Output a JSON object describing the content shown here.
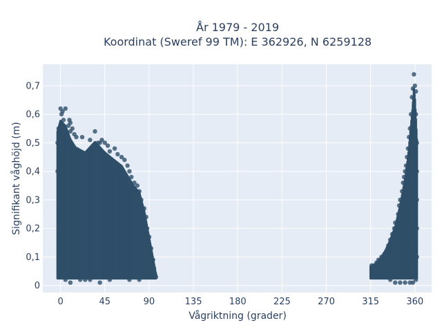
{
  "chart_data": {
    "type": "scatter",
    "title_lines": [
      "År 1979 - 2019",
      "Koordinat (Sweref 99 TM): E 362926, N 6259128"
    ],
    "xlabel": "Vågriktning (grader)",
    "ylabel": "Signifikant våghöjd (m)",
    "xlim": [
      -18,
      377
    ],
    "ylim": [
      -0.025,
      0.775
    ],
    "x_ticks": [
      0,
      45,
      90,
      135,
      180,
      225,
      270,
      315,
      360
    ],
    "x_tick_labels": [
      "0",
      "45",
      "90",
      "135",
      "180",
      "225",
      "270",
      "315",
      "360"
    ],
    "y_ticks": [
      0,
      0.1,
      0.2,
      0.3,
      0.4,
      0.5,
      0.6,
      0.7
    ],
    "y_tick_labels": [
      "0",
      "0,1",
      "0,2",
      "0,3",
      "0,4",
      "0,5",
      "0,6",
      "0,7"
    ],
    "grid": true,
    "colors": {
      "marker": "#2f4f69",
      "plot_background": "#e5ecf6",
      "grid": "#ffffff",
      "text": "#2a3f5f"
    },
    "series": [
      {
        "marker": "circle",
        "description_clusters": [
          {
            "x_range": [
              -3,
              97
            ],
            "y_min": 0.01,
            "upper_envelope": [
              [
                -3,
                0.58
              ],
              [
                0,
                0.62
              ],
              [
                5,
                0.6
              ],
              [
                10,
                0.55
              ],
              [
                15,
                0.52
              ],
              [
                25,
                0.5
              ],
              [
                35,
                0.54
              ],
              [
                45,
                0.5
              ],
              [
                55,
                0.47
              ],
              [
                62,
                0.45
              ],
              [
                70,
                0.4
              ],
              [
                75,
                0.37
              ],
              [
                80,
                0.35
              ],
              [
                85,
                0.28
              ],
              [
                90,
                0.18
              ],
              [
                95,
                0.08
              ],
              [
                97,
                0.04
              ]
            ]
          },
          {
            "x_range": [
              315,
              362
            ],
            "y_min": 0.01,
            "upper_envelope": [
              [
                315,
                0.07
              ],
              [
                320,
                0.08
              ],
              [
                325,
                0.1
              ],
              [
                330,
                0.13
              ],
              [
                335,
                0.17
              ],
              [
                340,
                0.22
              ],
              [
                345,
                0.3
              ],
              [
                350,
                0.4
              ],
              [
                353,
                0.48
              ],
              [
                356,
                0.6
              ],
              [
                358,
                0.68
              ],
              [
                359,
                0.74
              ],
              [
                360,
                0.7
              ],
              [
                362,
                0.55
              ]
            ]
          }
        ],
        "points": [
          [
            0,
            0.62
          ],
          [
            2,
            0.61
          ],
          [
            5,
            0.62
          ],
          [
            1,
            0.6
          ],
          [
            3,
            0.58
          ],
          [
            9,
            0.58
          ],
          [
            10,
            0.57
          ],
          [
            8,
            0.56
          ],
          [
            12,
            0.55
          ],
          [
            10,
            0.54
          ],
          [
            14,
            0.53
          ],
          [
            35,
            0.54
          ],
          [
            16,
            0.52
          ],
          [
            22,
            0.52
          ],
          [
            30,
            0.51
          ],
          [
            38,
            0.5
          ],
          [
            42,
            0.51
          ],
          [
            40,
            0.5
          ],
          [
            45,
            0.5
          ],
          [
            48,
            0.49
          ],
          [
            55,
            0.48
          ],
          [
            50,
            0.47
          ],
          [
            58,
            0.46
          ],
          [
            62,
            0.45
          ],
          [
            65,
            0.44
          ],
          [
            68,
            0.42
          ],
          [
            70,
            0.4
          ],
          [
            72,
            0.38
          ],
          [
            75,
            0.36
          ],
          [
            78,
            0.35
          ],
          [
            80,
            0.33
          ],
          [
            82,
            0.3
          ],
          [
            85,
            0.27
          ],
          [
            87,
            0.24
          ],
          [
            88,
            0.2
          ],
          [
            90,
            0.17
          ],
          [
            92,
            0.13
          ],
          [
            94,
            0.09
          ],
          [
            95,
            0.06
          ],
          [
            96,
            0.04
          ],
          [
            97,
            0.03
          ],
          [
            -2,
            0.55
          ],
          [
            -3,
            0.5
          ],
          [
            -3,
            0.4
          ],
          [
            -2,
            0.3
          ],
          [
            -2,
            0.2
          ],
          [
            -2,
            0.1
          ],
          [
            -1,
            0.05
          ],
          [
            5,
            0.02
          ],
          [
            10,
            0.01
          ],
          [
            20,
            0.02
          ],
          [
            30,
            0.02
          ],
          [
            40,
            0.01
          ],
          [
            50,
            0.02
          ],
          [
            60,
            0.03
          ],
          [
            70,
            0.02
          ],
          [
            80,
            0.02
          ],
          [
            90,
            0.03
          ],
          [
            15,
            0.03
          ],
          [
            25,
            0.02
          ],
          [
            359,
            0.74
          ],
          [
            360,
            0.7
          ],
          [
            358,
            0.69
          ],
          [
            361,
            0.68
          ],
          [
            357,
            0.66
          ],
          [
            359,
            0.64
          ],
          [
            356,
            0.6
          ],
          [
            360,
            0.58
          ],
          [
            355,
            0.55
          ],
          [
            354,
            0.52
          ],
          [
            353,
            0.48
          ],
          [
            352,
            0.45
          ],
          [
            351,
            0.42
          ],
          [
            350,
            0.4
          ],
          [
            349,
            0.38
          ],
          [
            348,
            0.36
          ],
          [
            347,
            0.33
          ],
          [
            345,
            0.3
          ],
          [
            344,
            0.28
          ],
          [
            343,
            0.25
          ],
          [
            340,
            0.22
          ],
          [
            339,
            0.2
          ],
          [
            337,
            0.18
          ],
          [
            335,
            0.16
          ],
          [
            333,
            0.14
          ],
          [
            331,
            0.12
          ],
          [
            329,
            0.11
          ],
          [
            326,
            0.1
          ],
          [
            323,
            0.09
          ],
          [
            321,
            0.08
          ],
          [
            318,
            0.07
          ],
          [
            316,
            0.07
          ],
          [
            320,
            0.05
          ],
          [
            325,
            0.04
          ],
          [
            330,
            0.03
          ],
          [
            335,
            0.02
          ],
          [
            340,
            0.01
          ],
          [
            345,
            0.01
          ],
          [
            350,
            0.01
          ],
          [
            355,
            0.01
          ],
          [
            358,
            0.01
          ],
          [
            361,
            0.02
          ],
          [
            362,
            0.1
          ],
          [
            362,
            0.2
          ],
          [
            362,
            0.3
          ],
          [
            362,
            0.4
          ],
          [
            362,
            0.5
          ],
          [
            361,
            0.6
          ],
          [
            334,
            0.06
          ],
          [
            342,
            0.08
          ]
        ]
      }
    ]
  }
}
